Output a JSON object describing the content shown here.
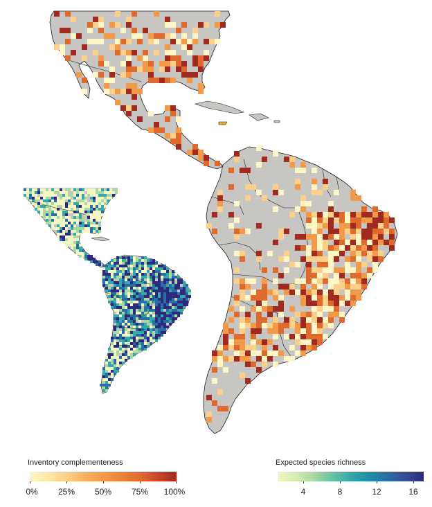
{
  "legend_left": {
    "title": "Inventory complementeness",
    "ticks": [
      "0%",
      "25%",
      "50%",
      "75%",
      "100%"
    ],
    "colors": [
      "#fff6c8",
      "#fcd08a",
      "#f39a4a",
      "#df6a2e",
      "#9e2a20"
    ]
  },
  "legend_right": {
    "title": "Expected species richness",
    "ticks": [
      "4",
      "8",
      "12",
      "16"
    ],
    "colors": [
      "#f2f6c2",
      "#a9d8a6",
      "#35a8a8",
      "#2a6fa4",
      "#2b2a7c"
    ]
  },
  "map": {
    "land_color": "#c8c6c3",
    "coast_color": "#1a1a1a"
  }
}
